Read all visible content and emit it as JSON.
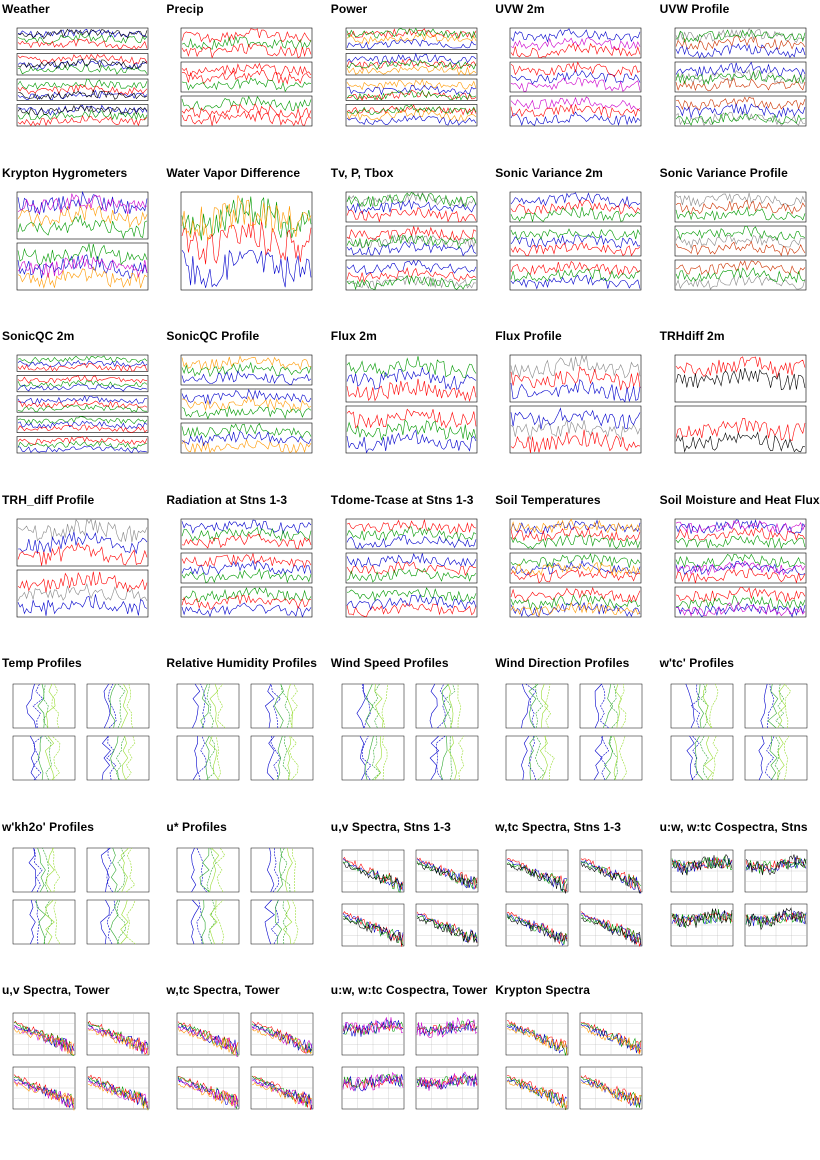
{
  "cells": [
    {
      "title": "Weather",
      "type": "ts",
      "panels": 4,
      "colors": [
        "#0000cc",
        "#009900",
        "#ff0000",
        "#000000"
      ]
    },
    {
      "title": "Precip",
      "type": "ts",
      "panels": 3,
      "colors": [
        "#ff0000",
        "#009900",
        "#ff0000"
      ]
    },
    {
      "title": "Power",
      "type": "ts",
      "panels": 4,
      "colors": [
        "#ff0000",
        "#ff9900",
        "#0000cc",
        "#009900"
      ]
    },
    {
      "title": "UVW 2m",
      "type": "ts",
      "panels": 3,
      "colors": [
        "#0000cc",
        "#cc00cc",
        "#ff0000"
      ]
    },
    {
      "title": "UVW Profile",
      "type": "ts",
      "panels": 3,
      "colors": [
        "#888888",
        "#cc3300",
        "#0000cc",
        "#009900"
      ]
    },
    {
      "title": "Krypton Hygrometers",
      "type": "ts",
      "panels": 2,
      "colors": [
        "#0000cc",
        "#ff9900",
        "#009900",
        "#cc00cc"
      ]
    },
    {
      "title": "Water Vapor Difference",
      "type": "ts",
      "panels": 1,
      "colors": [
        "#009900",
        "#ff0000",
        "#0000cc",
        "#ff9900"
      ]
    },
    {
      "title": "Tv, P, Tbox",
      "type": "ts",
      "panels": 3,
      "colors": [
        "#888888",
        "#0000cc",
        "#ff0000",
        "#009900"
      ]
    },
    {
      "title": "Sonic Variance 2m",
      "type": "ts",
      "panels": 3,
      "colors": [
        "#0000cc",
        "#ff0000",
        "#009900"
      ]
    },
    {
      "title": "Sonic Variance Profile",
      "type": "ts",
      "panels": 3,
      "colors": [
        "#888888",
        "#cc3300",
        "#009900"
      ]
    },
    {
      "title": "SonicQC 2m",
      "type": "ts",
      "panels": 5,
      "colors": [
        "#009900",
        "#0000cc",
        "#ff0000"
      ]
    },
    {
      "title": "SonicQC Profile",
      "type": "ts",
      "panels": 3,
      "colors": [
        "#ff9900",
        "#009900",
        "#0000cc"
      ]
    },
    {
      "title": "Flux 2m",
      "type": "ts",
      "panels": 2,
      "colors": [
        "#009900",
        "#0000cc",
        "#ff0000"
      ]
    },
    {
      "title": "Flux Profile",
      "type": "ts",
      "panels": 2,
      "colors": [
        "#888888",
        "#ff0000",
        "#0000cc"
      ]
    },
    {
      "title": "TRHdiff 2m",
      "type": "ts",
      "panels": 2,
      "colors": [
        "#ff0000",
        "#000000"
      ]
    },
    {
      "title": "TRH_diff Profile",
      "type": "ts",
      "panels": 2,
      "colors": [
        "#888888",
        "#0000cc",
        "#ff0000"
      ]
    },
    {
      "title": "Radiation at Stns 1-3",
      "type": "ts",
      "panels": 3,
      "colors": [
        "#0000cc",
        "#009900",
        "#ff0000"
      ]
    },
    {
      "title": "Tdome-Tcase at Stns 1-3",
      "type": "ts",
      "panels": 3,
      "colors": [
        "#ff0000",
        "#009900",
        "#0000cc"
      ]
    },
    {
      "title": "Soil Temperatures",
      "type": "ts",
      "panels": 3,
      "colors": [
        "#0000cc",
        "#ff0000",
        "#009900",
        "#ff9900"
      ]
    },
    {
      "title": "Soil Moisture and Heat Flux",
      "type": "ts",
      "panels": 3,
      "colors": [
        "#0000cc",
        "#ff0000",
        "#009900",
        "#cc00cc"
      ]
    },
    {
      "title": "Temp Profiles",
      "type": "profile",
      "colors": [
        "#0000cc",
        "#33aa33",
        "#99dd33"
      ]
    },
    {
      "title": "Relative Humidity Profiles",
      "type": "profile",
      "colors": [
        "#0000cc",
        "#33aa33",
        "#99dd33"
      ]
    },
    {
      "title": "Wind Speed Profiles",
      "type": "profile",
      "colors": [
        "#0000cc",
        "#33aa33",
        "#99dd33"
      ]
    },
    {
      "title": "Wind Direction Profiles",
      "type": "profile",
      "colors": [
        "#0000cc",
        "#33aa33",
        "#99dd33"
      ]
    },
    {
      "title": "w'tc' Profiles",
      "type": "profile",
      "colors": [
        "#0000cc",
        "#33aa33",
        "#99dd33"
      ]
    },
    {
      "title": "w'kh2o' Profiles",
      "type": "profile",
      "colors": [
        "#0000cc",
        "#33aa33",
        "#99dd33"
      ]
    },
    {
      "title": "u* Profiles",
      "type": "profile",
      "colors": [
        "#0000cc",
        "#33aa33",
        "#99dd33"
      ]
    },
    {
      "title": "u,v Spectra, Stns 1-3",
      "type": "spectra",
      "colors": [
        "#ff0000",
        "#0000cc",
        "#009900",
        "#000000"
      ]
    },
    {
      "title": "w,tc Spectra, Stns 1-3",
      "type": "spectra",
      "colors": [
        "#ff0000",
        "#0000cc",
        "#009900",
        "#000000"
      ]
    },
    {
      "title": "u:w, w:tc Cospectra, Stns",
      "type": "cospectra",
      "colors": [
        "#ff0000",
        "#0000cc",
        "#009900",
        "#000000"
      ]
    },
    {
      "title": "u,v Spectra, Tower",
      "type": "spectra",
      "colors": [
        "#ff0000",
        "#009900",
        "#0000cc",
        "#cc00cc",
        "#ff9900"
      ]
    },
    {
      "title": "w,tc Spectra, Tower",
      "type": "spectra",
      "colors": [
        "#ff0000",
        "#009900",
        "#0000cc",
        "#cc00cc",
        "#ff9900"
      ]
    },
    {
      "title": "u:w, w:tc Cospectra, Tower",
      "type": "cospectra",
      "colors": [
        "#ff0000",
        "#009900",
        "#0000cc",
        "#cc00cc"
      ]
    },
    {
      "title": "Krypton Spectra",
      "type": "spectra",
      "colors": [
        "#ff0000",
        "#009900",
        "#0000cc",
        "#ff9900"
      ]
    }
  ]
}
